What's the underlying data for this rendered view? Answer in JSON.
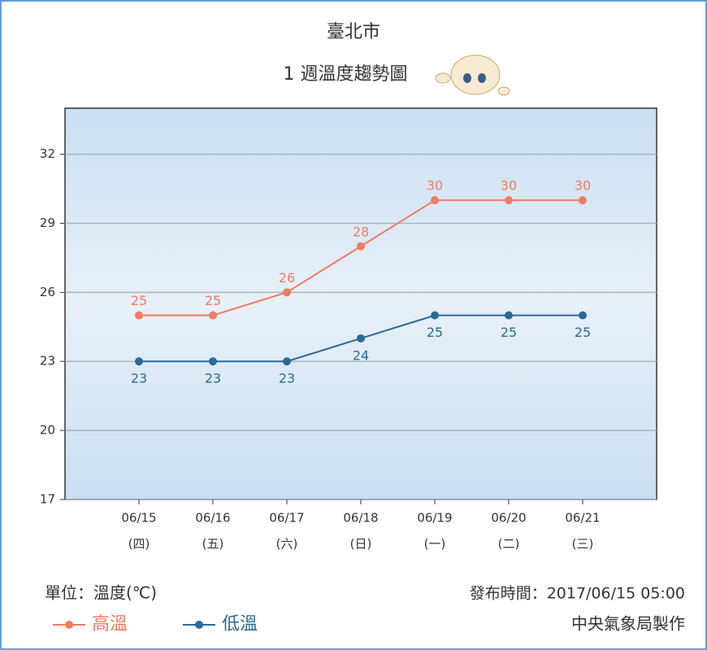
{
  "chart_data": {
    "type": "line",
    "title": "臺北市",
    "subtitle": "1 週溫度趨勢圖",
    "categories": [
      "06/15",
      "06/16",
      "06/17",
      "06/18",
      "06/19",
      "06/20",
      "06/21"
    ],
    "weekdays": [
      "(四)",
      "(五)",
      "(六)",
      "(日)",
      "(一)",
      "(二)",
      "(三)"
    ],
    "series": [
      {
        "name": "高溫",
        "color": "#f07b62",
        "values": [
          25,
          25,
          26,
          28,
          30,
          30,
          30
        ]
      },
      {
        "name": "低溫",
        "color": "#2a6a96",
        "values": [
          23,
          23,
          23,
          24,
          25,
          25,
          25
        ]
      }
    ],
    "ylim": [
      17,
      34
    ],
    "yticks": [
      17,
      20,
      23,
      26,
      29,
      32
    ],
    "grid": true,
    "unit_note": "單位：溫度(℃)",
    "issued": "發布時間：2017/06/15 05:00",
    "credit": "中央氣象局製作"
  }
}
